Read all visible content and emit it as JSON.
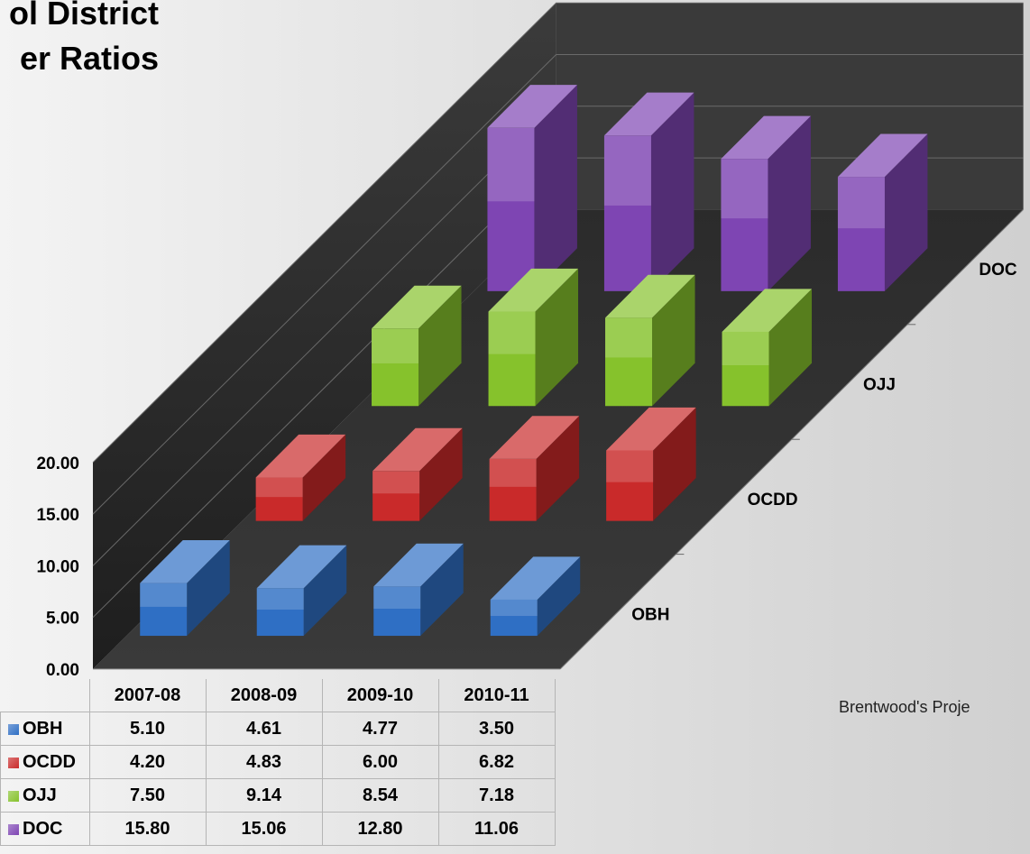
{
  "title": {
    "line1": "ol District",
    "line2": "er Ratios"
  },
  "credit": "Brentwood's Proje",
  "chart_data": {
    "type": "bar",
    "title": "",
    "categories": [
      "2007-08",
      "2008-09",
      "2009-10",
      "2010-11"
    ],
    "ylim": [
      0,
      20
    ],
    "ytick_labels": [
      "0.00",
      "5.00",
      "10.00",
      "15.00",
      "20.00"
    ],
    "series": [
      {
        "name": "OBH",
        "color": "#2f6fc4",
        "values": [
          "5.10",
          "4.61",
          "4.77",
          "3.50"
        ]
      },
      {
        "name": "OCDD",
        "color": "#c92a2a",
        "values": [
          "4.20",
          "4.83",
          "6.00",
          "6.82"
        ]
      },
      {
        "name": "OJJ",
        "color": "#86c22c",
        "values": [
          "7.50",
          "9.14",
          "8.54",
          "7.18"
        ]
      },
      {
        "name": "DOC",
        "color": "#7e45b3",
        "values": [
          "15.80",
          "15.06",
          "12.80",
          "11.06"
        ]
      }
    ],
    "grid": true,
    "data_table": true
  }
}
